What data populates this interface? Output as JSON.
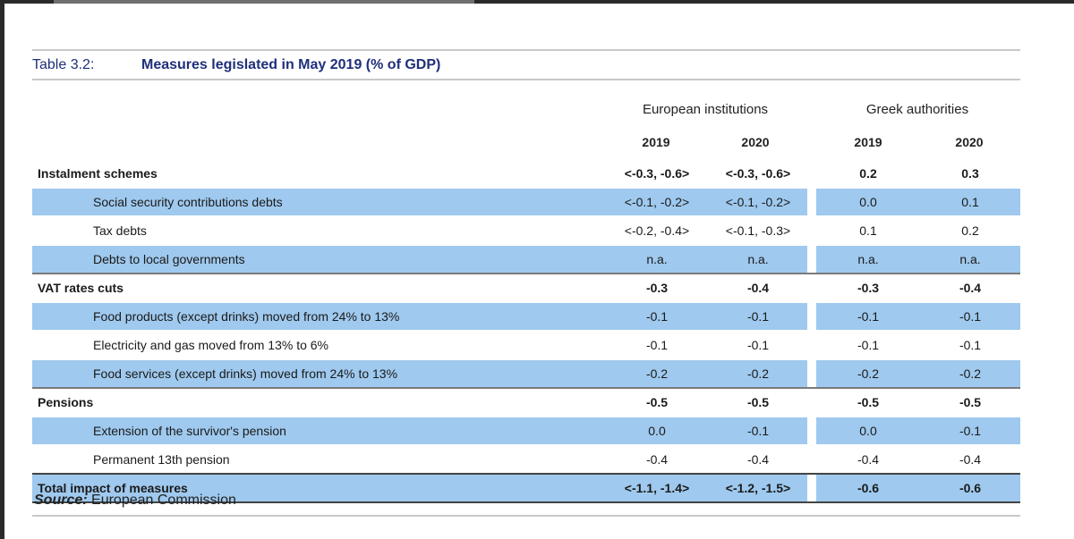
{
  "table": {
    "label": "Table 3.2:",
    "title": "Measures legislated in May 2019 (% of GDP)",
    "groups": [
      "European institutions",
      "Greek authorities"
    ],
    "years": [
      "2019",
      "2020",
      "2019",
      "2020"
    ],
    "rows": [
      {
        "label": "Instalment schemes",
        "values": [
          "<-0.3, -0.6>",
          "<-0.3, -0.6>",
          "0.2",
          "0.3"
        ]
      },
      {
        "label": "Social security contributions debts",
        "values": [
          "<-0.1, -0.2>",
          "<-0.1, -0.2>",
          "0.0",
          "0.1"
        ]
      },
      {
        "label": "Tax debts",
        "values": [
          "<-0.2, -0.4>",
          "<-0.1, -0.3>",
          "0.1",
          "0.2"
        ]
      },
      {
        "label": "Debts to local governments",
        "values": [
          "n.a.",
          "n.a.",
          "n.a.",
          "n.a."
        ]
      },
      {
        "label": "VAT rates cuts",
        "values": [
          "-0.3",
          "-0.4",
          "-0.3",
          "-0.4"
        ]
      },
      {
        "label": "Food products (except drinks) moved from 24% to 13%",
        "values": [
          "-0.1",
          "-0.1",
          "-0.1",
          "-0.1"
        ]
      },
      {
        "label": "Electricity and gas moved from 13% to 6%",
        "values": [
          "-0.1",
          "-0.1",
          "-0.1",
          "-0.1"
        ]
      },
      {
        "label": "Food services (except drinks) moved from 24% to 13%",
        "values": [
          "-0.2",
          "-0.2",
          "-0.2",
          "-0.2"
        ]
      },
      {
        "label": "Pensions",
        "values": [
          "-0.5",
          "-0.5",
          "-0.5",
          "-0.5"
        ]
      },
      {
        "label": "Extension of the survivor's pension",
        "values": [
          "0.0",
          "-0.1",
          "0.0",
          "-0.1"
        ]
      },
      {
        "label": "Permanent 13th pension",
        "values": [
          "-0.4",
          "-0.4",
          "-0.4",
          "-0.4"
        ]
      },
      {
        "label": "Total impact of measures",
        "values": [
          "<-1.1, -1.4>",
          "<-1.2, -1.5>",
          "-0.6",
          "-0.6"
        ]
      }
    ]
  },
  "source": {
    "label": "Source:",
    "text": "European Commission"
  },
  "colors": {
    "row_shade": "#9fc9ee",
    "title_text": "#1f2f7a",
    "rule": "#c8c8c8"
  }
}
